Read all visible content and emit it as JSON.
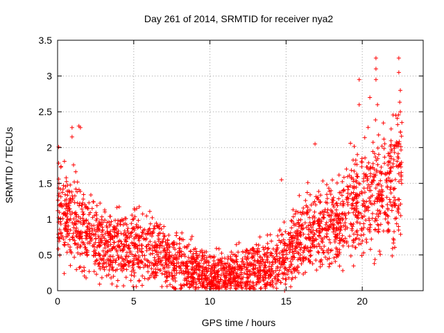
{
  "chart_data": {
    "type": "scatter",
    "title": "Day 261 of 2014, SRMTID for receiver nya2",
    "xlabel": "GPS time / hours",
    "ylabel": "SRMTID / TECUs",
    "xlim": [
      0,
      24
    ],
    "ylim": [
      0,
      3.5
    ],
    "xticks": [
      0,
      5,
      10,
      15,
      20
    ],
    "yticks": [
      0,
      0.5,
      1,
      1.5,
      2,
      2.5,
      3,
      3.5
    ],
    "xtick_labels": [
      "0",
      "5",
      "10",
      "15",
      "20"
    ],
    "ytick_labels": [
      "0",
      "0.5",
      "1",
      "1.5",
      "2",
      "2.5",
      "3",
      "3.5"
    ],
    "grid": true,
    "marker": "+",
    "color": "#ff0000",
    "trend": [
      [
        0,
        1.2
      ],
      [
        1,
        0.95
      ],
      [
        2,
        0.75
      ],
      [
        3,
        0.68
      ],
      [
        4,
        0.6
      ],
      [
        5,
        0.62
      ],
      [
        6,
        0.6
      ],
      [
        7,
        0.5
      ],
      [
        8,
        0.38
      ],
      [
        9,
        0.3
      ],
      [
        10,
        0.22
      ],
      [
        11,
        0.2
      ],
      [
        12,
        0.25
      ],
      [
        13,
        0.3
      ],
      [
        14,
        0.35
      ],
      [
        15,
        0.5
      ],
      [
        16,
        0.7
      ],
      [
        17,
        0.85
      ],
      [
        18,
        0.95
      ],
      [
        19,
        1.05
      ],
      [
        20,
        1.3
      ],
      [
        21,
        1.4
      ],
      [
        22,
        1.45
      ],
      [
        22.6,
        1.7
      ]
    ],
    "highlights": [
      [
        0.95,
        2.28
      ],
      [
        0.95,
        2.15
      ],
      [
        1.4,
        2.3
      ],
      [
        1.5,
        2.28
      ],
      [
        14.7,
        1.55
      ],
      [
        16.9,
        2.05
      ],
      [
        19.8,
        2.95
      ],
      [
        19.8,
        2.6
      ],
      [
        20.5,
        2.7
      ],
      [
        20.9,
        3.25
      ],
      [
        20.9,
        3.1
      ],
      [
        20.9,
        2.95
      ],
      [
        21.0,
        2.6
      ],
      [
        22.4,
        3.25
      ],
      [
        22.4,
        3.05
      ],
      [
        22.5,
        2.8
      ],
      [
        22.5,
        2.5
      ],
      [
        22.6,
        2.35
      ],
      [
        22.2,
        2.45
      ],
      [
        14.9,
        0.0
      ]
    ]
  }
}
